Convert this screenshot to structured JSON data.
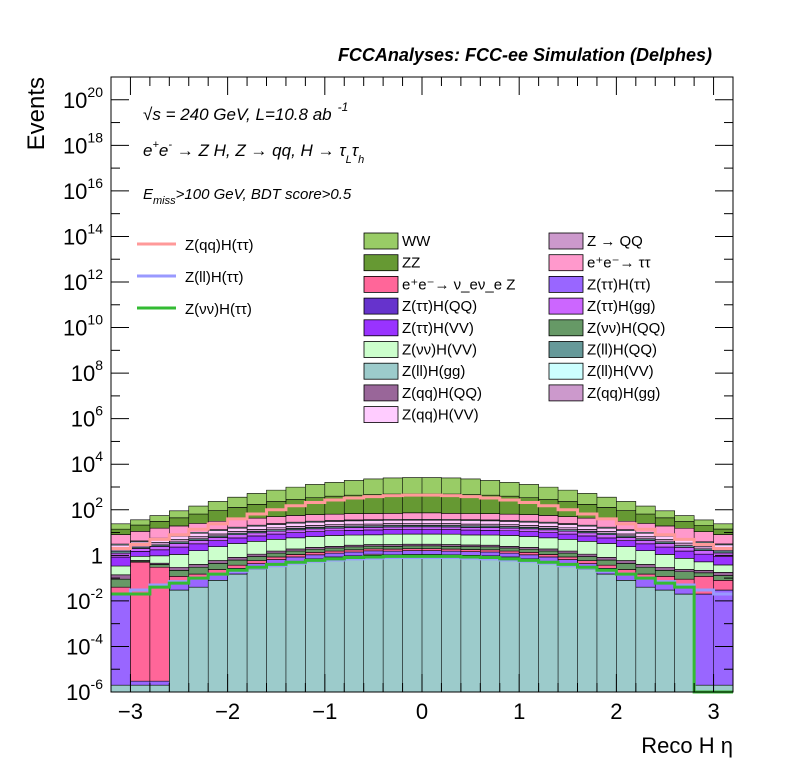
{
  "chart_data": {
    "type": "area",
    "title": "FCCAnalyses: FCC-ee Simulation (Delphes)",
    "xlabel": "Reco H η",
    "ylabel": "Events",
    "yscale": "log",
    "xlim": [
      -3.2,
      3.2
    ],
    "ylim_exp": [
      -6,
      21
    ],
    "xticks": [
      "−3",
      "−2",
      "−1",
      "0",
      "1",
      "2",
      "3"
    ],
    "yticks": [
      {
        "base": "10",
        "exp": "20",
        "e": 20
      },
      {
        "base": "10",
        "exp": "18",
        "e": 18
      },
      {
        "base": "10",
        "exp": "16",
        "e": 16
      },
      {
        "base": "10",
        "exp": "14",
        "e": 14
      },
      {
        "base": "10",
        "exp": "12",
        "e": 12
      },
      {
        "base": "10",
        "exp": "10",
        "e": 10
      },
      {
        "base": "10",
        "exp": "8",
        "e": 8
      },
      {
        "base": "10",
        "exp": "6",
        "e": 6
      },
      {
        "base": "10",
        "exp": "4",
        "e": 4
      },
      {
        "base": "10",
        "exp": "2",
        "e": 2
      },
      {
        "base": "1",
        "exp": "",
        "e": 0
      },
      {
        "base": "10",
        "exp": "-2",
        "e": -2
      },
      {
        "base": "10",
        "exp": "-4",
        "e": -4
      },
      {
        "base": "10",
        "exp": "-6",
        "e": -6
      }
    ],
    "annotations": {
      "energy_sqrt": "√s",
      "energy_value": " = 240 GeV, L=10.8 ab",
      "energy_exp": "-1",
      "process_ee": "e",
      "process_plus": "+",
      "process_e2": "e",
      "process_minus": "-",
      "process_rest1": " → Z H, Z  → qq, H  → τ",
      "process_sub_L": "L",
      "process_tau2": "τ",
      "process_sub_h": "h",
      "cut_E": "E",
      "cut_miss": "miss",
      "cut_rest": ">100 GeV, BDT score>0.5"
    },
    "bin_centers": [
      -3.1,
      -2.9,
      -2.7,
      -2.5,
      -2.3,
      -2.1,
      -1.9,
      -1.7,
      -1.5,
      -1.3,
      -1.1,
      -0.9,
      -0.7,
      -0.5,
      -0.3,
      -0.1,
      0.1,
      0.3,
      0.5,
      0.7,
      0.9,
      1.1,
      1.3,
      1.5,
      1.7,
      1.9,
      2.1,
      2.3,
      2.5,
      2.7,
      2.9,
      3.1
    ],
    "stack_bottom": 1e-06,
    "stack": [
      {
        "name": "Z(ll)H(gg)",
        "color": "#9ccbcb",
        "values": [
          1e-06,
          1e-06,
          1e-06,
          0.03,
          0.04,
          0.08,
          0.15,
          0.25,
          0.4,
          0.55,
          0.7,
          0.85,
          0.95,
          1.0,
          1.05,
          1.1,
          1.1,
          1.05,
          1.0,
          0.95,
          0.85,
          0.7,
          0.55,
          0.4,
          0.25,
          0.15,
          0.08,
          0.04,
          0.03,
          0.02,
          1e-06,
          1e-06
        ]
      },
      {
        "name": "Z → QQ",
        "color": "#cc99cc",
        "values": [
          0,
          0,
          0,
          0,
          0,
          0,
          0,
          0,
          0,
          0,
          0,
          0,
          0,
          0.12,
          0,
          0,
          0,
          0,
          0,
          0,
          0,
          0,
          0,
          0,
          0,
          0,
          0,
          0,
          0,
          0,
          0,
          0
        ]
      },
      {
        "name": "Z(ττ)H(QQ)",
        "color": "#9966ff",
        "values": [
          0.02,
          1e-06,
          1e-06,
          0.04,
          0.05,
          0.08,
          0.12,
          0.18,
          0.25,
          0.3,
          0.35,
          0.4,
          0.45,
          0.45,
          0.48,
          0.5,
          0.5,
          0.48,
          0.45,
          0.45,
          0.4,
          0.35,
          0.3,
          0.25,
          0.18,
          0.12,
          0.08,
          0.05,
          0.04,
          0.03,
          0.02,
          0.03
        ]
      },
      {
        "name": "e⁺e⁻→ ν_e ν_e Z",
        "color": "#ff6699",
        "values": [
          0.02,
          0.5,
          0.3,
          0.05,
          0.06,
          0.08,
          0.1,
          0.15,
          0.2,
          0.25,
          0.3,
          0.3,
          0.35,
          0.35,
          0.35,
          0.35,
          0.35,
          0.35,
          0.35,
          0.35,
          0.3,
          0.3,
          0.25,
          0.2,
          0.15,
          0.1,
          0.08,
          0.06,
          0.05,
          0.04,
          0.1,
          0.05
        ]
      },
      {
        "name": "Z(νν)H(QQ)",
        "color": "#669966",
        "values": [
          0.05,
          0.05,
          0.1,
          0.1,
          0.15,
          0.2,
          0.25,
          0.3,
          0.4,
          0.45,
          0.5,
          0.55,
          0.6,
          0.6,
          0.6,
          0.65,
          0.65,
          0.6,
          0.6,
          0.6,
          0.55,
          0.5,
          0.45,
          0.4,
          0.3,
          0.25,
          0.2,
          0.15,
          0.1,
          0.1,
          0.05,
          0.05
        ]
      },
      {
        "name": "Z(qq)H(QQ)",
        "color": "#996699",
        "values": [
          0.05,
          0.05,
          0.05,
          0.08,
          0.1,
          0.15,
          0.2,
          0.25,
          0.3,
          0.35,
          0.4,
          0.4,
          0.45,
          0.45,
          0.5,
          0.5,
          0.5,
          0.5,
          0.45,
          0.45,
          0.4,
          0.4,
          0.35,
          0.3,
          0.25,
          0.2,
          0.15,
          0.1,
          0.08,
          0.05,
          0.05,
          0.05
        ]
      },
      {
        "name": "Z(νν)H(VV)",
        "color": "#ccffcc",
        "values": [
          0.2,
          0.3,
          0.5,
          0.8,
          1.2,
          1.8,
          2.5,
          3.0,
          3.5,
          4.0,
          4.5,
          5.0,
          5.0,
          5.0,
          5.5,
          5.5,
          5.5,
          5.5,
          5.0,
          5.0,
          5.0,
          4.5,
          4.0,
          3.5,
          3.0,
          2.5,
          1.8,
          1.2,
          0.8,
          0.5,
          0.3,
          0.2
        ]
      },
      {
        "name": "Z(ττ)H(VV)",
        "color": "#9933ff",
        "values": [
          0.5,
          0.6,
          0.8,
          1.2,
          1.6,
          2.0,
          2.5,
          3.0,
          3.5,
          4.0,
          4.2,
          4.5,
          4.8,
          5.0,
          5.0,
          5.0,
          5.0,
          5.0,
          5.0,
          4.8,
          4.5,
          4.2,
          4.0,
          3.5,
          3.0,
          2.5,
          2.0,
          1.6,
          1.2,
          0.8,
          0.6,
          0.5
        ]
      },
      {
        "name": "Z(ττ)H(gg)",
        "color": "#cc66ff",
        "values": [
          0.4,
          0.5,
          0.7,
          1.0,
          1.3,
          1.7,
          2.2,
          2.6,
          3.0,
          3.3,
          3.6,
          3.8,
          4.0,
          4.0,
          4.2,
          4.2,
          4.2,
          4.2,
          4.0,
          4.0,
          3.8,
          3.6,
          3.3,
          3.0,
          2.6,
          2.2,
          1.7,
          1.3,
          1.0,
          0.7,
          0.5,
          0.4
        ]
      },
      {
        "name": "Z(ll)H(QQ)",
        "color": "#669999",
        "values": [
          0.3,
          0.3,
          0.4,
          0.6,
          0.8,
          1.0,
          1.3,
          1.6,
          1.9,
          2.2,
          2.4,
          2.6,
          2.8,
          2.8,
          3.0,
          3.0,
          3.0,
          3.0,
          2.8,
          2.8,
          2.6,
          2.4,
          2.2,
          1.9,
          1.6,
          1.3,
          1.0,
          0.8,
          0.6,
          0.4,
          0.3,
          0.3
        ]
      },
      {
        "name": "Z(qq)H(gg)",
        "color": "#cc99cc",
        "values": [
          0.5,
          0.6,
          0.8,
          1.0,
          1.3,
          1.6,
          2.0,
          2.4,
          2.8,
          3.2,
          3.5,
          3.8,
          4.0,
          4.0,
          4.2,
          4.2,
          4.2,
          4.2,
          4.0,
          4.0,
          3.8,
          3.5,
          3.2,
          2.8,
          2.4,
          2.0,
          1.6,
          1.3,
          1.0,
          0.8,
          0.6,
          0.5
        ]
      },
      {
        "name": "Z(qq)H(VV)",
        "color": "#ffccff",
        "values": [
          0.8,
          1.0,
          1.5,
          2.0,
          2.8,
          3.5,
          4.5,
          5.5,
          6.5,
          7.5,
          8.5,
          9.0,
          9.5,
          10,
          10,
          10,
          10,
          10,
          10,
          9.5,
          9.0,
          8.5,
          7.5,
          6.5,
          5.5,
          4.5,
          3.5,
          2.8,
          2.0,
          1.5,
          1.0,
          0.8
        ]
      },
      {
        "name": "Z(ll)H(VV)",
        "color": "#ccffff",
        "values": [
          0.3,
          0.4,
          0.5,
          0.7,
          0.9,
          1.2,
          1.5,
          1.8,
          2.1,
          2.4,
          2.6,
          2.8,
          3.0,
          3.0,
          3.0,
          3.2,
          3.2,
          3.0,
          3.0,
          3.0,
          2.8,
          2.6,
          2.4,
          2.1,
          1.8,
          1.5,
          1.2,
          0.9,
          0.7,
          0.5,
          0.4,
          0.3
        ]
      },
      {
        "name": "e⁺e⁻→ ττ",
        "color": "#ff99cc",
        "values": [
          5,
          7,
          10,
          12,
          15,
          18,
          20,
          22,
          25,
          28,
          30,
          30,
          32,
          32,
          32,
          35,
          35,
          32,
          32,
          32,
          30,
          30,
          28,
          25,
          22,
          20,
          18,
          15,
          12,
          10,
          7,
          5
        ]
      },
      {
        "name": "ZZ",
        "color": "#669933",
        "values": [
          6,
          10,
          15,
          25,
          40,
          60,
          90,
          130,
          180,
          230,
          280,
          330,
          370,
          400,
          420,
          430,
          430,
          420,
          400,
          370,
          330,
          280,
          230,
          180,
          130,
          90,
          60,
          40,
          25,
          15,
          10,
          6
        ]
      },
      {
        "name": "WW",
        "color": "#99cc66",
        "values": [
          10,
          15,
          25,
          45,
          80,
          140,
          230,
          350,
          500,
          700,
          950,
          1200,
          1500,
          1800,
          2000,
          2100,
          2100,
          2000,
          1800,
          1500,
          1200,
          950,
          700,
          500,
          350,
          230,
          140,
          80,
          45,
          25,
          15,
          10
        ]
      }
    ],
    "overlays": [
      {
        "name": "Z(qq)H(ττ)",
        "color": "#ff9999",
        "values": [
          2,
          3,
          5,
          8,
          14,
          24,
          40,
          65,
          100,
          150,
          210,
          270,
          330,
          380,
          420,
          440,
          440,
          420,
          380,
          330,
          270,
          210,
          150,
          100,
          65,
          40,
          24,
          14,
          8,
          5,
          3,
          2
        ]
      },
      {
        "name": "Z(ll)H(ττ)",
        "color": "#9999ff",
        "values": [
          0.02,
          0.03,
          0.05,
          0.07,
          0.1,
          0.15,
          0.2,
          0.28,
          0.35,
          0.45,
          0.55,
          0.62,
          0.7,
          0.75,
          0.8,
          0.8,
          0.8,
          0.8,
          0.75,
          0.7,
          0.62,
          0.55,
          0.45,
          0.35,
          0.28,
          0.2,
          0.15,
          0.1,
          0.07,
          0.05,
          0.03,
          0.02
        ]
      },
      {
        "name": "Z(νν)H(ττ)",
        "color": "#33bb33",
        "values": [
          0.02,
          0.02,
          0.04,
          0.06,
          0.1,
          0.15,
          0.22,
          0.3,
          0.4,
          0.5,
          0.6,
          0.7,
          0.8,
          0.85,
          0.9,
          0.9,
          0.9,
          0.9,
          0.85,
          0.8,
          0.7,
          0.6,
          0.5,
          0.4,
          0.3,
          0.22,
          0.15,
          0.1,
          0.06,
          0.04,
          1e-06,
          1e-06
        ]
      }
    ],
    "legend_left": [
      {
        "label": "Z(qq)H(ττ)",
        "color": "#ff9999"
      },
      {
        "label": "Z(ll)H(ττ)",
        "color": "#9999ff"
      },
      {
        "label": "Z(νν)H(ττ)",
        "color": "#33bb33"
      }
    ],
    "legend_col1": [
      {
        "label": "WW",
        "color": "#99cc66"
      },
      {
        "label": "ZZ",
        "color": "#669933"
      },
      {
        "label": "e⁺e⁻→ ν_eν_e Z",
        "color": "#ff6699"
      },
      {
        "label": "Z(ττ)H(QQ)",
        "color": "#6633cc"
      },
      {
        "label": "Z(ττ)H(VV)",
        "color": "#9933ff"
      },
      {
        "label": "Z(νν)H(VV)",
        "color": "#ccffcc"
      },
      {
        "label": "Z(ll)H(gg)",
        "color": "#9ccbcb"
      },
      {
        "label": "Z(qq)H(QQ)",
        "color": "#996699"
      },
      {
        "label": "Z(qq)H(VV)",
        "color": "#ffccff"
      }
    ],
    "legend_col2": [
      {
        "label": "Z → QQ",
        "color": "#cc99cc"
      },
      {
        "label": "e⁺e⁻→ ττ",
        "color": "#ff99cc"
      },
      {
        "label": "Z(ττ)H(ττ)",
        "color": "#9966ff"
      },
      {
        "label": "Z(ττ)H(gg)",
        "color": "#cc66ff"
      },
      {
        "label": "Z(νν)H(QQ)",
        "color": "#669966"
      },
      {
        "label": "Z(ll)H(QQ)",
        "color": "#669999"
      },
      {
        "label": "Z(ll)H(VV)",
        "color": "#ccffff"
      },
      {
        "label": "Z(qq)H(gg)",
        "color": "#cc99cc"
      }
    ]
  }
}
